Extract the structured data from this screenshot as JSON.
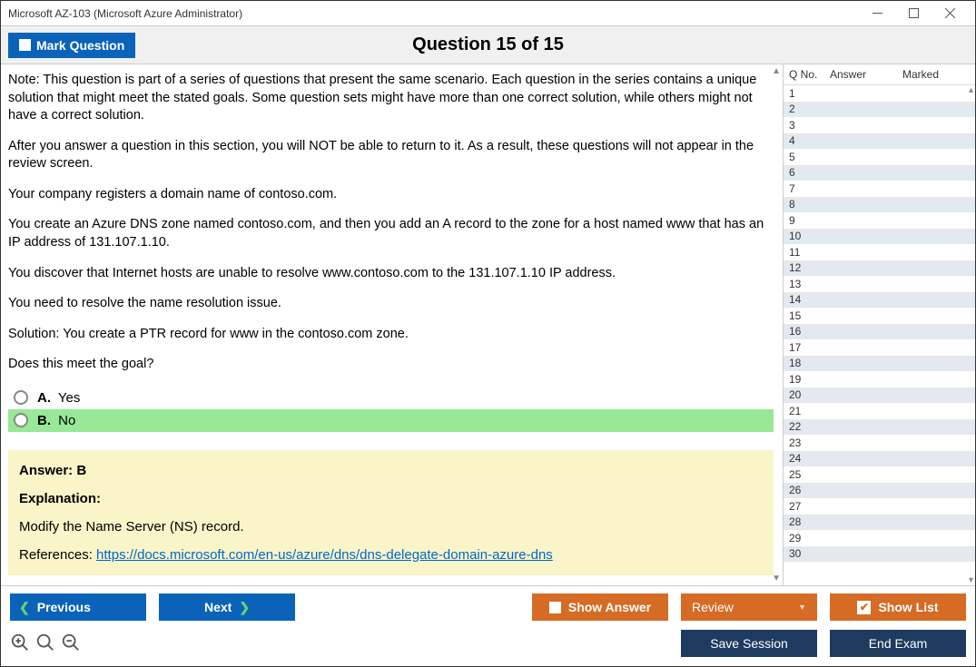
{
  "window": {
    "title": "Microsoft AZ-103 (Microsoft Azure Administrator)"
  },
  "header": {
    "mark_label": "Mark Question",
    "heading": "Question 15 of 15"
  },
  "question": {
    "paragraphs": [
      "Note: This question is part of a series of questions that present the same scenario. Each question in the series contains a unique solution that might meet the stated goals. Some question sets might have more than one correct solution, while others might not have a correct solution.",
      "After you answer a question in this section, you will NOT be able to return to it. As a result, these questions will not appear in the review screen.",
      "Your company registers a domain name of contoso.com.",
      "You create an Azure DNS zone named contoso.com, and then you add an A record to the zone for a host named www that has an IP address of 131.107.1.10.",
      "You discover that Internet hosts are unable to resolve www.contoso.com to the 131.107.1.10 IP address.",
      "You need to resolve the name resolution issue.",
      "Solution: You create a PTR record for www in the contoso.com zone.",
      "Does this meet the goal?"
    ],
    "options": [
      {
        "letter": "A.",
        "text": "Yes",
        "correct": false
      },
      {
        "letter": "B.",
        "text": "No",
        "correct": true
      }
    ]
  },
  "answer": {
    "line": "Answer: B",
    "explanation_label": "Explanation:",
    "explanation_text": "Modify the Name Server (NS) record.",
    "references_label": "References: ",
    "references_url": "https://docs.microsoft.com/en-us/azure/dns/dns-delegate-domain-azure-dns"
  },
  "side": {
    "cols": {
      "qno": "Q No.",
      "answer": "Answer",
      "marked": "Marked"
    },
    "count": 30
  },
  "footer": {
    "previous": "Previous",
    "next": "Next",
    "show_answer": "Show Answer",
    "review": "Review",
    "show_list": "Show List",
    "save_session": "Save Session",
    "end_exam": "End Exam"
  },
  "colors": {
    "blue": "#0a63b8",
    "orange": "#d56b24",
    "navy": "#1e3a5f",
    "correct_bg": "#98e898",
    "answer_bg": "#f9f5c8",
    "stripe": "#e3e9ee"
  }
}
